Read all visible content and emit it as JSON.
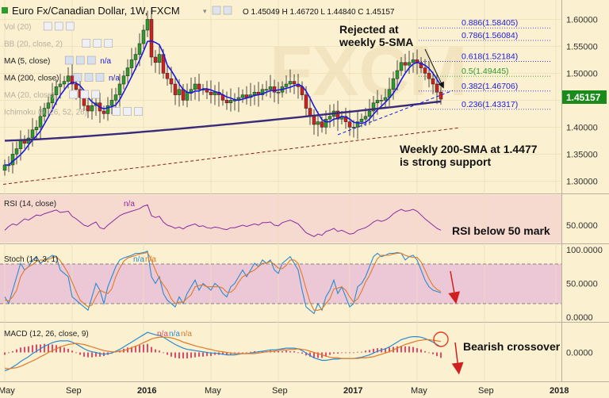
{
  "header": {
    "symbol": "Euro Fx/Canadian Dollar, 1W, FXCM",
    "ohlc": "O 1.45049  H 1.46720  L 1.44840  C 1.45157"
  },
  "legend": [
    {
      "label": "Vol (20)",
      "faded": true
    },
    {
      "label": "BB (20, close, 2)",
      "faded": true
    },
    {
      "label": "MA (5, close)",
      "faded": false,
      "value": "n/a"
    },
    {
      "label": "MA (200, close)",
      "faded": false,
      "value": "n/a"
    },
    {
      "label": "MA (20, close)",
      "faded": true
    },
    {
      "label": "Ichimoku (9, 26, 52, 26)",
      "faded": true
    }
  ],
  "annotations": {
    "rejected": "Rejected at\nweekly 5-SMA",
    "support": "Weekly 200-SMA at 1.4477\nis strong support",
    "rsi_note": "RSI below 50 mark",
    "macd_note": "Bearish crossover"
  },
  "last_price": "1.45157",
  "colors": {
    "background": "#fbf0cf",
    "bull": "#2e9a2e",
    "bear": "#d02020",
    "ma5": "#1a1ae0",
    "ma200": "#3a2a7a",
    "rsi": "#8a2aa0",
    "macd": "#2a8ad0",
    "signal": "#e07a2a"
  },
  "chart_data": [
    {
      "type": "candlestick",
      "title": "Euro Fx/Canadian Dollar, 1W, FXCM",
      "ylim": [
        1.28,
        1.63
      ],
      "y_ticks": [
        "1.60000",
        "1.55000",
        "1.50000",
        "1.45000",
        "1.40000",
        "1.35000",
        "1.30000"
      ],
      "y_tick_values": [
        1.6,
        1.55,
        1.5,
        1.45,
        1.4,
        1.35,
        1.3
      ],
      "x_labels": [
        "May",
        "Sep",
        "2016",
        "May",
        "Sep",
        "2017",
        "May",
        "Sep",
        "2018"
      ],
      "x_label_weeks": [
        0,
        17,
        35,
        52,
        69,
        87,
        104,
        121,
        139
      ],
      "closes": [
        1.33,
        1.33,
        1.35,
        1.36,
        1.375,
        1.37,
        1.38,
        1.395,
        1.4,
        1.42,
        1.435,
        1.445,
        1.46,
        1.475,
        1.48,
        1.485,
        1.495,
        1.48,
        1.47,
        1.455,
        1.44,
        1.43,
        1.44,
        1.445,
        1.43,
        1.425,
        1.44,
        1.45,
        1.46,
        1.48,
        1.495,
        1.51,
        1.525,
        1.535,
        1.555,
        1.58,
        1.6,
        1.53,
        1.52,
        1.535,
        1.5,
        1.49,
        1.48,
        1.46,
        1.47,
        1.45,
        1.465,
        1.47,
        1.48,
        1.47,
        1.47,
        1.465,
        1.46,
        1.465,
        1.46,
        1.45,
        1.445,
        1.45,
        1.45,
        1.455,
        1.46,
        1.455,
        1.46,
        1.465,
        1.46,
        1.47,
        1.47,
        1.475,
        1.465,
        1.465,
        1.475,
        1.48,
        1.485,
        1.48,
        1.475,
        1.46,
        1.435,
        1.42,
        1.405,
        1.41,
        1.4,
        1.415,
        1.42,
        1.43,
        1.415,
        1.42,
        1.41,
        1.4,
        1.4,
        1.41,
        1.415,
        1.42,
        1.43,
        1.445,
        1.45,
        1.45,
        1.455,
        1.47,
        1.49,
        1.505,
        1.52,
        1.515,
        1.52,
        1.525,
        1.52,
        1.51,
        1.5,
        1.49,
        1.48,
        1.465,
        1.452
      ],
      "series": [
        {
          "name": "MA (5, close)",
          "note": "computed from closes"
        },
        {
          "name": "MA (200, close)",
          "note": "1.375 rising to 1.4477"
        }
      ],
      "levels": [
        {
          "label": "0.886(1.58405)",
          "value": 1.58405,
          "color": "#1a1ae0"
        },
        {
          "label": "0.786(1.56084)",
          "value": 1.56084,
          "color": "#1a1ae0"
        },
        {
          "label": "0.618(1.52184)",
          "value": 1.52184,
          "color": "#1a1ae0"
        },
        {
          "label": "0.5(1.49445)",
          "value": 1.49445,
          "color": "#2e9a2e"
        },
        {
          "label": "0.382(1.46706)",
          "value": 1.46706,
          "color": "#1a1ae0"
        },
        {
          "label": "0.236(1.43317)",
          "value": 1.43317,
          "color": "#1a1ae0"
        }
      ],
      "last_price": 1.45157
    },
    {
      "type": "line",
      "title": "RSI (14, close)",
      "value_label": "n/a",
      "ylim": [
        25,
        95
      ],
      "y_ticks": [
        "50.0000"
      ],
      "y_tick_values": [
        50
      ],
      "values": [
        42,
        48,
        52,
        50,
        55,
        60,
        58,
        62,
        66,
        65,
        68,
        70,
        72,
        74,
        70,
        71,
        72,
        64,
        60,
        55,
        50,
        48,
        52,
        55,
        46,
        44,
        50,
        55,
        60,
        65,
        68,
        70,
        72,
        74,
        76,
        80,
        82,
        65,
        62,
        64,
        55,
        50,
        48,
        45,
        47,
        44,
        48,
        50,
        52,
        48,
        49,
        46,
        45,
        47,
        46,
        44,
        43,
        46,
        46,
        48,
        50,
        48,
        50,
        52,
        50,
        54,
        54,
        55,
        50,
        49,
        54,
        56,
        58,
        55,
        52,
        45,
        38,
        35,
        32,
        36,
        34,
        40,
        42,
        45,
        40,
        42,
        39,
        36,
        37,
        42,
        44,
        46,
        50,
        55,
        58,
        56,
        58,
        62,
        68,
        72,
        75,
        72,
        73,
        75,
        72,
        66,
        60,
        55,
        50,
        45,
        42
      ]
    },
    {
      "type": "line",
      "title": "Stoch (14, 3, 1)",
      "value_labels": [
        "n/a",
        "n/a"
      ],
      "ylim": [
        -5,
        105
      ],
      "y_ticks": [
        "100.0000",
        "50.0000",
        "0.0000"
      ],
      "y_tick_values": [
        100,
        50,
        0
      ],
      "band": [
        20,
        80
      ],
      "series": [
        {
          "name": "%K",
          "color": "#2a8ad0",
          "values": [
            30,
            20,
            40,
            60,
            80,
            70,
            75,
            85,
            90,
            80,
            85,
            88,
            92,
            90,
            70,
            65,
            60,
            30,
            25,
            20,
            15,
            10,
            30,
            50,
            40,
            20,
            45,
            60,
            75,
            85,
            88,
            90,
            92,
            95,
            95,
            96,
            98,
            60,
            50,
            60,
            35,
            25,
            20,
            15,
            30,
            20,
            35,
            45,
            55,
            40,
            50,
            45,
            40,
            50,
            45,
            35,
            30,
            45,
            50,
            60,
            70,
            60,
            70,
            80,
            75,
            85,
            80,
            85,
            70,
            65,
            80,
            85,
            90,
            80,
            70,
            40,
            15,
            10,
            5,
            20,
            10,
            30,
            40,
            55,
            35,
            45,
            30,
            15,
            20,
            45,
            50,
            60,
            75,
            90,
            95,
            90,
            92,
            95,
            95,
            96,
            95,
            85,
            90,
            92,
            85,
            70,
            55,
            45,
            40,
            38,
            36
          ]
        },
        {
          "name": "%D",
          "color": "#e07a2a",
          "values": [
            25,
            24,
            30,
            40,
            60,
            70,
            75,
            78,
            83,
            85,
            85,
            86,
            88,
            90,
            84,
            75,
            65,
            52,
            38,
            25,
            20,
            15,
            18,
            30,
            40,
            37,
            35,
            42,
            60,
            73,
            83,
            88,
            90,
            92,
            94,
            95,
            96,
            85,
            70,
            57,
            48,
            40,
            27,
            20,
            22,
            22,
            28,
            33,
            45,
            47,
            48,
            45,
            45,
            45,
            45,
            43,
            37,
            37,
            42,
            52,
            60,
            63,
            67,
            70,
            75,
            80,
            80,
            83,
            78,
            73,
            72,
            77,
            85,
            85,
            80,
            63,
            42,
            22,
            10,
            10,
            12,
            20,
            27,
            42,
            43,
            45,
            40,
            30,
            22,
            27,
            38,
            52,
            62,
            75,
            87,
            92,
            92,
            92,
            94,
            95,
            95,
            92,
            90,
            89,
            89,
            82,
            70,
            57,
            47,
            41,
            38
          ]
        }
      ]
    },
    {
      "type": "line",
      "title": "MACD (12, 26, close, 9)",
      "value_labels": [
        "n/a",
        "n/a",
        "n/a"
      ],
      "ylim": [
        -0.045,
        0.045
      ],
      "y_ticks": [
        "0.0000"
      ],
      "y_tick_values": [
        0
      ],
      "series": [
        {
          "name": "MACD",
          "color": "#2a8ad0",
          "values": [
            -0.03,
            -0.028,
            -0.024,
            -0.02,
            -0.015,
            -0.011,
            -0.007,
            -0.002,
            0.002,
            0.006,
            0.01,
            0.013,
            0.016,
            0.018,
            0.019,
            0.019,
            0.019,
            0.017,
            0.014,
            0.01,
            0.006,
            0.003,
            0.001,
            0.0,
            -0.002,
            -0.003,
            -0.002,
            -0.001,
            0.002,
            0.005,
            0.009,
            0.013,
            0.017,
            0.021,
            0.025,
            0.029,
            0.033,
            0.031,
            0.029,
            0.028,
            0.025,
            0.021,
            0.017,
            0.013,
            0.01,
            0.007,
            0.005,
            0.004,
            0.003,
            0.002,
            0.001,
            0.0,
            -0.001,
            -0.001,
            -0.002,
            -0.003,
            -0.004,
            -0.004,
            -0.004,
            -0.003,
            -0.002,
            -0.002,
            -0.001,
            0.0,
            0.001,
            0.002,
            0.003,
            0.004,
            0.004,
            0.005,
            0.006,
            0.007,
            0.007,
            0.007,
            0.006,
            0.003,
            -0.001,
            -0.005,
            -0.009,
            -0.011,
            -0.013,
            -0.013,
            -0.012,
            -0.011,
            -0.011,
            -0.01,
            -0.01,
            -0.01,
            -0.01,
            -0.009,
            -0.008,
            -0.006,
            -0.004,
            -0.001,
            0.002,
            0.004,
            0.006,
            0.009,
            0.013,
            0.017,
            0.021,
            0.023,
            0.025,
            0.026,
            0.026,
            0.025,
            0.023,
            0.02,
            0.017,
            0.013,
            0.009
          ]
        },
        {
          "name": "Signal",
          "color": "#e07a2a",
          "values": [
            -0.026,
            -0.027,
            -0.026,
            -0.025,
            -0.023,
            -0.02,
            -0.017,
            -0.014,
            -0.011,
            -0.007,
            -0.004,
            0.0,
            0.003,
            0.006,
            0.009,
            0.011,
            0.013,
            0.014,
            0.015,
            0.014,
            0.013,
            0.011,
            0.009,
            0.007,
            0.005,
            0.003,
            0.002,
            0.001,
            0.001,
            0.002,
            0.003,
            0.005,
            0.008,
            0.01,
            0.013,
            0.016,
            0.019,
            0.022,
            0.024,
            0.025,
            0.025,
            0.025,
            0.024,
            0.022,
            0.02,
            0.017,
            0.015,
            0.013,
            0.011,
            0.009,
            0.008,
            0.006,
            0.005,
            0.003,
            0.002,
            0.001,
            0.0,
            -0.001,
            -0.002,
            -0.002,
            -0.002,
            -0.002,
            -0.002,
            -0.002,
            -0.001,
            0.0,
            0.001,
            0.001,
            0.002,
            0.003,
            0.004,
            0.004,
            0.005,
            0.005,
            0.006,
            0.005,
            0.004,
            0.002,
            0.0,
            -0.002,
            -0.004,
            -0.006,
            -0.008,
            -0.009,
            -0.009,
            -0.01,
            -0.01,
            -0.01,
            -0.01,
            -0.01,
            -0.009,
            -0.009,
            -0.008,
            -0.007,
            -0.005,
            -0.003,
            -0.001,
            0.001,
            0.004,
            0.007,
            0.01,
            0.013,
            0.015,
            0.017,
            0.019,
            0.02,
            0.021,
            0.021,
            0.02,
            0.019,
            0.018
          ]
        }
      ]
    }
  ]
}
